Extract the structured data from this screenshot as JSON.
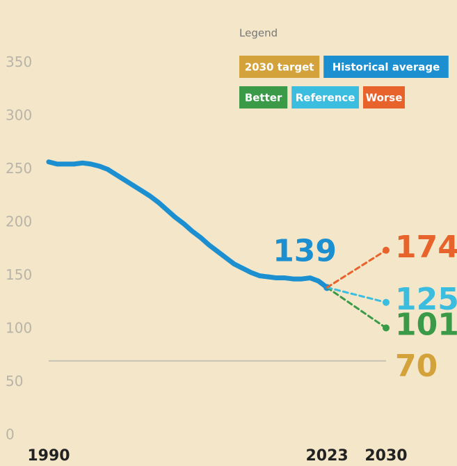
{
  "chart_data": {
    "type": "line",
    "legend_title": "Legend",
    "x": [
      1990,
      1991,
      1992,
      1993,
      1994,
      1995,
      1996,
      1997,
      1998,
      1999,
      2000,
      2001,
      2002,
      2003,
      2004,
      2005,
      2006,
      2007,
      2008,
      2009,
      2010,
      2011,
      2012,
      2013,
      2014,
      2015,
      2016,
      2017,
      2018,
      2019,
      2020,
      2021,
      2022,
      2023
    ],
    "series": [
      {
        "name": "Historical average",
        "color": "#1b8fd0",
        "values": [
          257,
          255,
          255,
          255,
          256,
          255,
          253,
          250,
          245,
          240,
          235,
          230,
          225,
          219,
          212,
          205,
          199,
          192,
          186,
          179,
          173,
          167,
          161,
          157,
          153,
          150,
          149,
          148,
          148,
          147,
          147,
          148,
          145,
          139
        ]
      },
      {
        "name": "Better",
        "color": "#3a9a48",
        "x": [
          2023,
          2030
        ],
        "values": [
          139,
          101
        ]
      },
      {
        "name": "Reference",
        "color": "#3bbde0",
        "x": [
          2023,
          2030
        ],
        "values": [
          139,
          125
        ]
      },
      {
        "name": "Worse",
        "color": "#e8632b",
        "x": [
          2023,
          2030
        ],
        "values": [
          139,
          174
        ]
      }
    ],
    "target": {
      "name": "2030 target",
      "value": 70,
      "color": "#d4a23a"
    },
    "xlim": [
      1990,
      2030
    ],
    "xticks": [
      1990,
      2023,
      2030
    ],
    "ylim": [
      0,
      400
    ],
    "yticks": [
      0,
      50,
      100,
      150,
      200,
      250,
      300,
      350
    ]
  }
}
